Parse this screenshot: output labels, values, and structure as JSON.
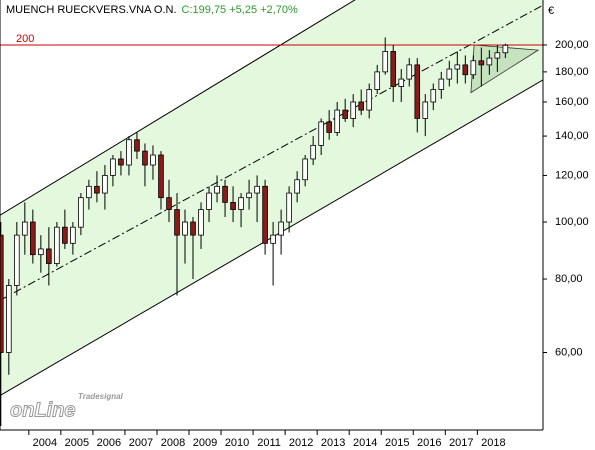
{
  "chart_data": {
    "type": "candlestick",
    "title": "MUENCH RUECKVERS.VNA O.N.",
    "subtitle": "C:199,75 +5,25 +2,70%",
    "currency": "€",
    "logo": {
      "small": "Tradesignal",
      "big": "onLine"
    },
    "log_scale": true,
    "xlim": [
      2003.1,
      2020.05
    ],
    "ylim": [
      44.3,
      238.5
    ],
    "yticks": [
      {
        "value": 60,
        "label": "60,00"
      },
      {
        "value": 80,
        "label": "80,00"
      },
      {
        "value": 100,
        "label": "100,00"
      },
      {
        "value": 120,
        "label": "120,00"
      },
      {
        "value": 140,
        "label": "140,00"
      },
      {
        "value": 160,
        "label": "160,00"
      },
      {
        "value": 180,
        "label": "180,00"
      },
      {
        "value": 200,
        "label": "200,00"
      }
    ],
    "xticks": [
      2004,
      2005,
      2006,
      2007,
      2008,
      2009,
      2010,
      2011,
      2012,
      2013,
      2014,
      2015,
      2016,
      2017,
      2018
    ],
    "hline": 200,
    "hline_color": "#cc0000",
    "channel_color": "#e3f8dc",
    "up_color": "#ffffff",
    "down_color": "#8b1a1a",
    "channel": {
      "upper": {
        "x": [
          2003.1,
          2020.05
        ],
        "y": [
          102.7,
          373
        ]
      },
      "middle": {
        "x": [
          2003.1,
          2020.05
        ],
        "y": [
          73.6,
          233.7
        ]
      },
      "lower": {
        "x": [
          2003.1,
          2020.05
        ],
        "y": [
          50.7,
          174.4
        ]
      }
    },
    "wedge": {
      "x": [
        2017.9,
        2019.9,
        2017.8
      ],
      "y": [
        200,
        196,
        166
      ]
    },
    "x": [
      2003.125,
      2003.375,
      2003.625,
      2003.875,
      2004.125,
      2004.375,
      2004.625,
      2004.875,
      2005.125,
      2005.375,
      2005.625,
      2005.875,
      2006.125,
      2006.375,
      2006.625,
      2006.875,
      2007.125,
      2007.375,
      2007.625,
      2007.875,
      2008.125,
      2008.375,
      2008.625,
      2008.875,
      2009.125,
      2009.375,
      2009.625,
      2009.875,
      2010.125,
      2010.375,
      2010.625,
      2010.875,
      2011.125,
      2011.375,
      2011.625,
      2011.875,
      2012.125,
      2012.375,
      2012.625,
      2012.875,
      2013.125,
      2013.375,
      2013.625,
      2013.875,
      2014.125,
      2014.375,
      2014.625,
      2014.875,
      2015.125,
      2015.375,
      2015.625,
      2015.875,
      2016.125,
      2016.375,
      2016.625,
      2016.875,
      2017.125,
      2017.375,
      2017.625,
      2017.875,
      2018.125,
      2018.375,
      2018.625,
      2018.875
    ],
    "open": [
      95,
      60,
      78,
      95,
      100,
      88,
      90,
      85,
      98,
      92,
      98,
      110,
      115,
      112,
      120,
      128,
      125,
      138,
      132,
      125,
      130,
      110,
      105,
      95,
      100,
      95,
      105,
      112,
      115,
      108,
      105,
      110,
      112,
      115,
      92,
      95,
      100,
      112,
      118,
      128,
      135,
      148,
      142,
      155,
      150,
      160,
      155,
      168,
      180,
      195,
      170,
      175,
      185,
      150,
      160,
      168,
      175,
      182,
      185,
      178,
      188,
      185,
      190,
      194
    ],
    "high": [
      100,
      80,
      100,
      108,
      105,
      95,
      98,
      100,
      105,
      100,
      112,
      118,
      122,
      125,
      130,
      132,
      140,
      142,
      136,
      135,
      132,
      118,
      112,
      105,
      102,
      108,
      115,
      120,
      118,
      115,
      112,
      118,
      120,
      118,
      100,
      105,
      115,
      122,
      130,
      140,
      150,
      155,
      160,
      162,
      165,
      168,
      172,
      185,
      206,
      200,
      182,
      190,
      190,
      165,
      172,
      180,
      188,
      195,
      192,
      192,
      198,
      196,
      200,
      201
    ],
    "low": [
      45,
      55,
      75,
      88,
      85,
      82,
      78,
      84,
      90,
      88,
      95,
      105,
      108,
      105,
      115,
      120,
      120,
      128,
      115,
      118,
      105,
      100,
      75,
      85,
      80,
      90,
      100,
      108,
      102,
      100,
      98,
      105,
      100,
      88,
      78,
      88,
      96,
      108,
      115,
      125,
      130,
      138,
      140,
      148,
      145,
      152,
      150,
      165,
      178,
      160,
      160,
      170,
      142,
      140,
      155,
      162,
      170,
      172,
      172,
      175,
      170,
      178,
      180,
      190
    ],
    "close": [
      60,
      78,
      95,
      100,
      88,
      90,
      85,
      98,
      92,
      98,
      110,
      115,
      112,
      120,
      128,
      125,
      138,
      132,
      125,
      130,
      110,
      105,
      95,
      100,
      95,
      105,
      112,
      115,
      108,
      105,
      110,
      112,
      115,
      92,
      95,
      100,
      112,
      118,
      128,
      135,
      148,
      142,
      155,
      150,
      160,
      155,
      168,
      180,
      195,
      170,
      175,
      185,
      150,
      160,
      168,
      175,
      182,
      185,
      178,
      188,
      185,
      190,
      194,
      199.75
    ]
  }
}
